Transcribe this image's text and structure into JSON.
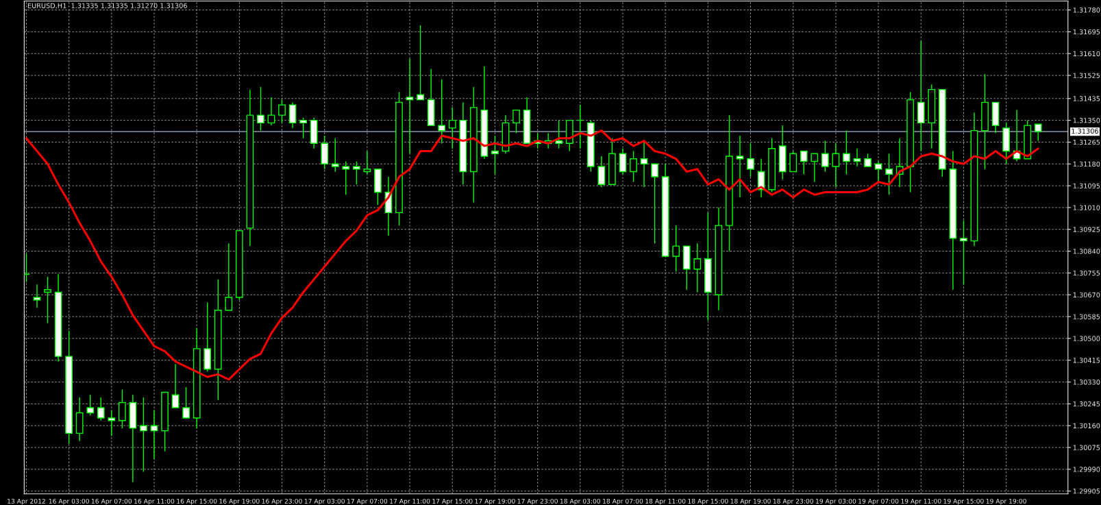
{
  "chart_data": {
    "type": "candlestick",
    "title": "EURUSD,H1  1.31335 1.31335 1.31270 1.31306",
    "categories": [
      "13 Apr 2012",
      null,
      null,
      null,
      "16 Apr 03:00",
      null,
      null,
      null,
      "16 Apr 07:00",
      null,
      null,
      null,
      "16 Apr 11:00",
      null,
      null,
      null,
      "16 Apr 15:00",
      null,
      null,
      null,
      "16 Apr 19:00",
      null,
      null,
      null,
      "16 Apr 23:00",
      null,
      null,
      null,
      "17 Apr 03:00",
      null,
      null,
      null,
      "17 Apr 07:00",
      null,
      null,
      null,
      "17 Apr 11:00",
      null,
      null,
      null,
      "17 Apr 15:00",
      null,
      null,
      null,
      "17 Apr 19:00",
      null,
      null,
      null,
      "17 Apr 23:00",
      null,
      null,
      null,
      "18 Apr 03:00",
      null,
      null,
      null,
      "18 Apr 07:00",
      null,
      null,
      null,
      "18 Apr 11:00",
      null,
      null,
      null,
      "18 Apr 15:00",
      null,
      null,
      null,
      "18 Apr 19:00",
      null,
      null,
      null,
      "18 Apr 23:00",
      null,
      null,
      null,
      "19 Apr 03:00",
      null,
      null,
      null,
      "19 Apr 07:00",
      null,
      null,
      null,
      "19 Apr 11:00",
      null,
      null,
      null,
      "19 Apr 15:00",
      null,
      null,
      null,
      "19 Apr 19:00",
      null,
      null,
      null
    ],
    "series": [
      {
        "type": "line",
        "color": "#ff0000",
        "values": [
          1.3128,
          1.3123,
          1.3118,
          1.311,
          1.3103,
          1.3095,
          1.3088,
          1.308,
          1.3074,
          1.3067,
          1.3059,
          1.3053,
          1.3047,
          1.3045,
          1.3041,
          1.3039,
          1.3037,
          1.3035,
          1.3036,
          1.3034,
          1.3038,
          1.3042,
          1.3044,
          1.3052,
          1.3058,
          1.3062,
          1.3068,
          1.3073,
          1.3078,
          1.3083,
          1.3088,
          1.3092,
          1.3098,
          1.31,
          1.3105,
          1.3113,
          1.3116,
          1.3123,
          1.3123,
          1.3129,
          1.3128,
          1.3127,
          1.3128,
          1.3125,
          1.3126,
          1.3125,
          1.3126,
          1.3125,
          1.3127,
          1.3126,
          1.3128,
          1.3128,
          1.313,
          1.3129,
          1.3131,
          1.3127,
          1.3128,
          1.3125,
          1.3127,
          1.3123,
          1.3122,
          1.312,
          1.3115,
          1.3116,
          1.311,
          1.3112,
          1.3108,
          1.3112,
          1.3107,
          1.3109,
          1.3106,
          1.3108,
          1.3105,
          1.3108,
          1.3106,
          1.3107,
          1.3107,
          1.3107,
          1.3107,
          1.3108,
          1.3111,
          1.311,
          1.3115,
          1.3117,
          1.3121,
          1.3122,
          1.3121,
          1.3119,
          1.3118,
          1.3121,
          1.312,
          1.3123,
          1.312,
          1.3123,
          1.3121,
          1.3124
        ]
      }
    ],
    "ohlc": [
      [
        1.3075,
        1.3083,
        1.3072,
        1.3075
      ],
      [
        1.3066,
        1.3071,
        1.3062,
        1.3065
      ],
      [
        1.3068,
        1.3074,
        1.3056,
        1.3069
      ],
      [
        1.3068,
        1.3075,
        1.3041,
        1.3043
      ],
      [
        1.3043,
        1.3053,
        1.3009,
        1.3013
      ],
      [
        1.3013,
        1.3027,
        1.301,
        1.3021
      ],
      [
        1.3023,
        1.3028,
        1.302,
        1.3021
      ],
      [
        1.3023,
        1.3027,
        1.3018,
        1.3019
      ],
      [
        1.3019,
        1.3022,
        1.3012,
        1.3018
      ],
      [
        1.3018,
        1.303,
        1.3015,
        1.3025
      ],
      [
        1.3025,
        1.3028,
        1.2994,
        1.3015
      ],
      [
        1.3016,
        1.3027,
        1.2998,
        1.3014
      ],
      [
        1.3016,
        1.3022,
        1.3003,
        1.3014
      ],
      [
        1.3014,
        1.3029,
        1.3006,
        1.3029
      ],
      [
        1.3028,
        1.304,
        1.3023,
        1.3023
      ],
      [
        1.3023,
        1.3031,
        1.3019,
        1.3019
      ],
      [
        1.3019,
        1.3054,
        1.3015,
        1.3046
      ],
      [
        1.3046,
        1.3064,
        1.3037,
        1.3038
      ],
      [
        1.3038,
        1.3073,
        1.3026,
        1.3061
      ],
      [
        1.3061,
        1.3087,
        1.3061,
        1.3066
      ],
      [
        1.3066,
        1.3092,
        1.3065,
        1.3092
      ],
      [
        1.3093,
        1.3147,
        1.3086,
        1.3137
      ],
      [
        1.3137,
        1.3148,
        1.3131,
        1.3134
      ],
      [
        1.3134,
        1.3144,
        1.3133,
        1.3137
      ],
      [
        1.3137,
        1.3143,
        1.3134,
        1.3141
      ],
      [
        1.3141,
        1.3142,
        1.3132,
        1.3134
      ],
      [
        1.3135,
        1.3136,
        1.3128,
        1.3134
      ],
      [
        1.3135,
        1.3136,
        1.3124,
        1.3126
      ],
      [
        1.3126,
        1.3129,
        1.3116,
        1.3118
      ],
      [
        1.3118,
        1.3128,
        1.3115,
        1.3117
      ],
      [
        1.3117,
        1.3119,
        1.3106,
        1.3116
      ],
      [
        1.3117,
        1.3119,
        1.311,
        1.3116
      ],
      [
        1.3115,
        1.3123,
        1.3114,
        1.3116
      ],
      [
        1.3116,
        1.3116,
        1.3102,
        1.3107
      ],
      [
        1.3107,
        1.3113,
        1.309,
        1.3099
      ],
      [
        1.3099,
        1.3146,
        1.3094,
        1.3142
      ],
      [
        1.3144,
        1.3159,
        1.3122,
        1.3143
      ],
      [
        1.3145,
        1.3172,
        1.3143,
        1.3143
      ],
      [
        1.3143,
        1.3155,
        1.3133,
        1.3133
      ],
      [
        1.3133,
        1.3151,
        1.3126,
        1.3131
      ],
      [
        1.3132,
        1.314,
        1.3124,
        1.3135
      ],
      [
        1.3135,
        1.3142,
        1.311,
        1.3115
      ],
      [
        1.3115,
        1.3148,
        1.3103,
        1.314
      ],
      [
        1.3139,
        1.3156,
        1.312,
        1.3121
      ],
      [
        1.3123,
        1.3129,
        1.3114,
        1.3122
      ],
      [
        1.3123,
        1.3137,
        1.3122,
        1.3134
      ],
      [
        1.3134,
        1.3139,
        1.313,
        1.3139
      ],
      [
        1.3139,
        1.3144,
        1.3126,
        1.3126
      ],
      [
        1.3127,
        1.313,
        1.3124,
        1.3126
      ],
      [
        1.3126,
        1.313,
        1.3124,
        1.3127
      ],
      [
        1.3127,
        1.3135,
        1.3124,
        1.3126
      ],
      [
        1.3126,
        1.3135,
        1.3123,
        1.3135
      ],
      [
        1.3135,
        1.3141,
        1.3124,
        1.3135
      ],
      [
        1.3134,
        1.3135,
        1.3115,
        1.3117
      ],
      [
        1.3117,
        1.3121,
        1.3109,
        1.311
      ],
      [
        1.311,
        1.3128,
        1.311,
        1.3122
      ],
      [
        1.3122,
        1.3124,
        1.3114,
        1.3115
      ],
      [
        1.3115,
        1.3123,
        1.3111,
        1.312
      ],
      [
        1.312,
        1.3127,
        1.3109,
        1.3118
      ],
      [
        1.3118,
        1.3118,
        1.3087,
        1.3113
      ],
      [
        1.3113,
        1.3118,
        1.3082,
        1.3082
      ],
      [
        1.3082,
        1.3094,
        1.3076,
        1.3086
      ],
      [
        1.3086,
        1.3086,
        1.3069,
        1.3077
      ],
      [
        1.3077,
        1.3087,
        1.3068,
        1.3081
      ],
      [
        1.3081,
        1.3099,
        1.3057,
        1.3068
      ],
      [
        1.3067,
        1.3101,
        1.3061,
        1.3094
      ],
      [
        1.3094,
        1.3137,
        1.3084,
        1.3121
      ],
      [
        1.3121,
        1.3129,
        1.3105,
        1.312
      ],
      [
        1.312,
        1.3126,
        1.3113,
        1.3116
      ],
      [
        1.3115,
        1.312,
        1.3105,
        1.3108
      ],
      [
        1.3108,
        1.3128,
        1.3107,
        1.3124
      ],
      [
        1.3125,
        1.3133,
        1.3112,
        1.3115
      ],
      [
        1.3115,
        1.3123,
        1.3115,
        1.3122
      ],
      [
        1.3123,
        1.3123,
        1.3114,
        1.3119
      ],
      [
        1.3119,
        1.3122,
        1.3111,
        1.3122
      ],
      [
        1.3122,
        1.3127,
        1.3115,
        1.3117
      ],
      [
        1.3117,
        1.3126,
        1.3109,
        1.3122
      ],
      [
        1.3122,
        1.3131,
        1.3114,
        1.3119
      ],
      [
        1.312,
        1.3124,
        1.3117,
        1.3119
      ],
      [
        1.312,
        1.3122,
        1.3117,
        1.3117
      ],
      [
        1.3118,
        1.3119,
        1.3111,
        1.3116
      ],
      [
        1.3116,
        1.3122,
        1.3106,
        1.3114
      ],
      [
        1.3114,
        1.3128,
        1.3109,
        1.3117
      ],
      [
        1.3117,
        1.3146,
        1.3107,
        1.3143
      ],
      [
        1.3142,
        1.3166,
        1.3123,
        1.3134
      ],
      [
        1.3134,
        1.3149,
        1.3124,
        1.3147
      ],
      [
        1.3147,
        1.3147,
        1.3113,
        1.3116
      ],
      [
        1.3116,
        1.3123,
        1.3069,
        1.3089
      ],
      [
        1.3089,
        1.3096,
        1.3071,
        1.3088
      ],
      [
        1.3088,
        1.3138,
        1.3086,
        1.3131
      ],
      [
        1.3131,
        1.3153,
        1.3116,
        1.3142
      ],
      [
        1.3142,
        1.3142,
        1.313,
        1.3133
      ],
      [
        1.3132,
        1.3134,
        1.3118,
        1.3123
      ],
      [
        1.3123,
        1.3139,
        1.3119,
        1.312
      ],
      [
        1.312,
        1.3135,
        1.312,
        1.3133
      ],
      [
        1.31335,
        1.31335,
        1.3127,
        1.31306
      ]
    ],
    "ylim": [
      1.29894,
      1.31815
    ],
    "yticks": [
      1.29905,
      {
        "value": 1.2999,
        "label": "1.29990"
      },
      1.30075,
      {
        "value": 1.3016,
        "label": "1.30160"
      },
      1.30245,
      {
        "value": 1.3033,
        "label": "1.30330"
      },
      1.30415,
      {
        "value": 1.305,
        "label": "1.30500"
      },
      1.30585,
      {
        "value": 1.3067,
        "label": "1.30670"
      },
      1.30755,
      {
        "value": 1.3084,
        "label": "1.30840"
      },
      1.30925,
      {
        "value": 1.3101,
        "label": "1.31010"
      },
      1.31095,
      {
        "value": 1.3118,
        "label": "1.31180"
      },
      1.31265,
      {
        "value": 1.3135,
        "label": "1.31350"
      },
      1.31435,
      1.31525,
      {
        "value": 1.3161,
        "label": "1.31610"
      },
      1.31695,
      {
        "value": 1.3178,
        "label": "1.31780"
      }
    ],
    "ref_lines": [
      {
        "axis": "y",
        "value": 1.31306,
        "label": "1.31306",
        "color": "#8a9bb0"
      }
    ],
    "grid": true
  }
}
